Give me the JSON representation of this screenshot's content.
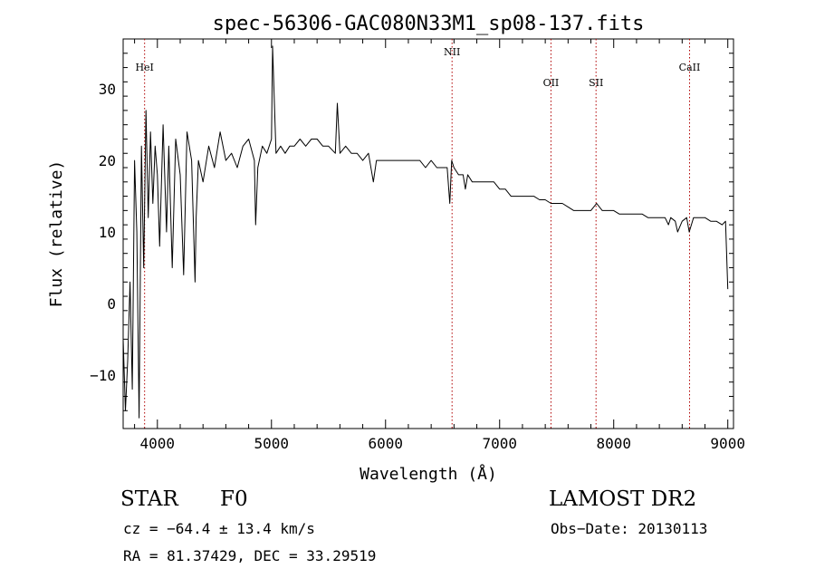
{
  "chart_data": {
    "type": "line",
    "title": "spec-56306-GAC080N33M1_sp08-137.fits",
    "xlabel": "Wavelength (Å)",
    "ylabel": "Flux (relative)",
    "xlim": [
      3700,
      9050
    ],
    "ylim": [
      -17.5,
      37
    ],
    "x_ticks": [
      4000,
      5000,
      6000,
      7000,
      8000,
      9000
    ],
    "y_ticks": [
      -10,
      0,
      10,
      20,
      30
    ],
    "grid": false,
    "series": [
      {
        "x": [
          3700,
          3720,
          3740,
          3760,
          3780,
          3800,
          3820,
          3840,
          3860,
          3880,
          3900,
          3920,
          3940,
          3960,
          3980,
          4000,
          4020,
          4050,
          4080,
          4100,
          4130,
          4160,
          4200,
          4230,
          4260,
          4300,
          4330,
          4340,
          4360,
          4400,
          4450,
          4500,
          4550,
          4600,
          4650,
          4700,
          4750,
          4800,
          4850,
          4861,
          4880,
          4920,
          4960,
          5000,
          5010,
          5040,
          5080,
          5120,
          5160,
          5200,
          5250,
          5300,
          5350,
          5400,
          5450,
          5500,
          5560,
          5577,
          5600,
          5650,
          5700,
          5750,
          5800,
          5850,
          5893,
          5920,
          5950,
          6000,
          6050,
          6100,
          6150,
          6200,
          6250,
          6300,
          6350,
          6400,
          6450,
          6500,
          6540,
          6563,
          6580,
          6600,
          6640,
          6680,
          6700,
          6720,
          6760,
          6800,
          6850,
          6900,
          6950,
          7000,
          7050,
          7100,
          7150,
          7200,
          7250,
          7300,
          7350,
          7400,
          7450,
          7500,
          7550,
          7600,
          7650,
          7700,
          7750,
          7800,
          7850,
          7900,
          7950,
          8000,
          8050,
          8100,
          8150,
          8200,
          8250,
          8300,
          8350,
          8400,
          8450,
          8480,
          8500,
          8540,
          8560,
          8600,
          8640,
          8662,
          8700,
          8750,
          8800,
          8850,
          8900,
          8950,
          8980,
          9000
        ],
        "y": [
          -5,
          -15,
          -8,
          3,
          -12,
          20,
          10,
          -16,
          22,
          5,
          27,
          12,
          24,
          14,
          22,
          18,
          8,
          25,
          10,
          22,
          5,
          23,
          18,
          4,
          24,
          20,
          3,
          12,
          20,
          17,
          22,
          19,
          24,
          20,
          21,
          19,
          22,
          23,
          20,
          11,
          19,
          22,
          21,
          23,
          36,
          21,
          22,
          21,
          22,
          22,
          23,
          22,
          23,
          23,
          22,
          22,
          21,
          28,
          21,
          22,
          21,
          21,
          20,
          21,
          17,
          20,
          20,
          20,
          20,
          20,
          20,
          20,
          20,
          20,
          19,
          20,
          19,
          19,
          19,
          14,
          20,
          19,
          18,
          18,
          16,
          18,
          17,
          17,
          17,
          17,
          17,
          16,
          16,
          15,
          15,
          15,
          15,
          15,
          14.5,
          14.5,
          14,
          14,
          14,
          13.5,
          13,
          13,
          13,
          13,
          14,
          13,
          13,
          13,
          12.5,
          12.5,
          12.5,
          12.5,
          12.5,
          12,
          12,
          12,
          12,
          11,
          12,
          11.5,
          10,
          11.5,
          12,
          10,
          12,
          12,
          12,
          11.5,
          11.5,
          11,
          11.5,
          2
        ]
      }
    ],
    "lines": [
      {
        "label": "HeI",
        "x": 3888
      },
      {
        "label": "NII",
        "x": 6583
      },
      {
        "label": "OII",
        "x": 7450
      },
      {
        "label": "SII",
        "x": 7845
      },
      {
        "label": "CaII",
        "x": 8665
      }
    ]
  },
  "info": {
    "class_label": "STAR",
    "subclass": "F0",
    "survey": "LAMOST DR2",
    "cz": "cz = −64.4 ± 13.4 km/s",
    "obs_date": "Obs−Date: 20130113",
    "coords": "RA =  81.37429, DEC =  33.29519"
  }
}
